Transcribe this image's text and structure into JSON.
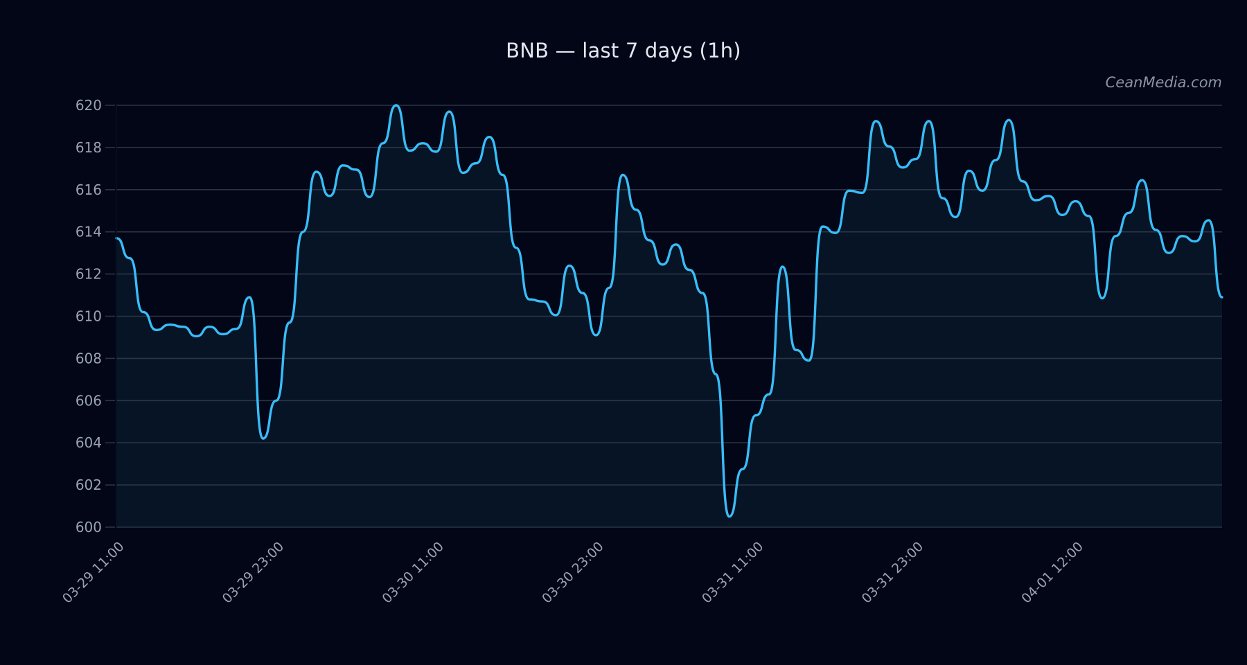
{
  "title": "BNB — last 7 days (1h)",
  "watermark": "CeanMedia.com",
  "colors": {
    "background": "#020617",
    "plot_fill": "#061426",
    "line": "#38bdf8",
    "grid": "#2b3545",
    "tick_label": "#9aa3b2",
    "title": "#e2e8f0"
  },
  "chart_data": {
    "type": "line",
    "title": "BNB — last 7 days (1h)",
    "xlabel": "",
    "ylabel": "",
    "ylim": [
      600,
      620
    ],
    "yticks": [
      600,
      602,
      604,
      606,
      608,
      610,
      612,
      614,
      616,
      618,
      620
    ],
    "grid": true,
    "legend": null,
    "area_fill": true,
    "x_tick_labels": [
      {
        "index": 0,
        "label": "03-29 11:00"
      },
      {
        "index": 12,
        "label": "03-29 23:00"
      },
      {
        "index": 24,
        "label": "03-30 11:00"
      },
      {
        "index": 36,
        "label": "03-30 23:00"
      },
      {
        "index": 48,
        "label": "03-31 11:00"
      },
      {
        "index": 60,
        "label": "03-31 23:00"
      },
      {
        "index": 72,
        "label": "04-01 12:00"
      }
    ],
    "series": [
      {
        "name": "BNB",
        "values": [
          613.7,
          612.75,
          610.2,
          609.35,
          609.6,
          609.5,
          609.05,
          609.5,
          609.15,
          609.4,
          610.9,
          604.2,
          606.0,
          609.7,
          614.0,
          616.85,
          615.7,
          617.15,
          616.95,
          615.65,
          618.2,
          620.0,
          617.85,
          618.2,
          617.8,
          619.7,
          616.8,
          617.25,
          618.5,
          616.7,
          613.25,
          610.8,
          610.7,
          610.05,
          612.4,
          611.1,
          609.1,
          611.35,
          616.7,
          615.05,
          613.6,
          612.45,
          613.4,
          612.2,
          611.1,
          607.25,
          600.5,
          602.75,
          605.3,
          606.3,
          612.35,
          608.4,
          607.9,
          614.25,
          613.95,
          615.95,
          615.85,
          619.25,
          618.05,
          617.05,
          617.45,
          619.25,
          615.6,
          614.7,
          616.9,
          615.95,
          617.4,
          619.3,
          616.4,
          615.5,
          615.7,
          614.8,
          615.45,
          614.75,
          610.85,
          613.8,
          614.9,
          616.45,
          614.1,
          613.0,
          613.8,
          613.55,
          614.55,
          610.9
        ]
      }
    ]
  }
}
